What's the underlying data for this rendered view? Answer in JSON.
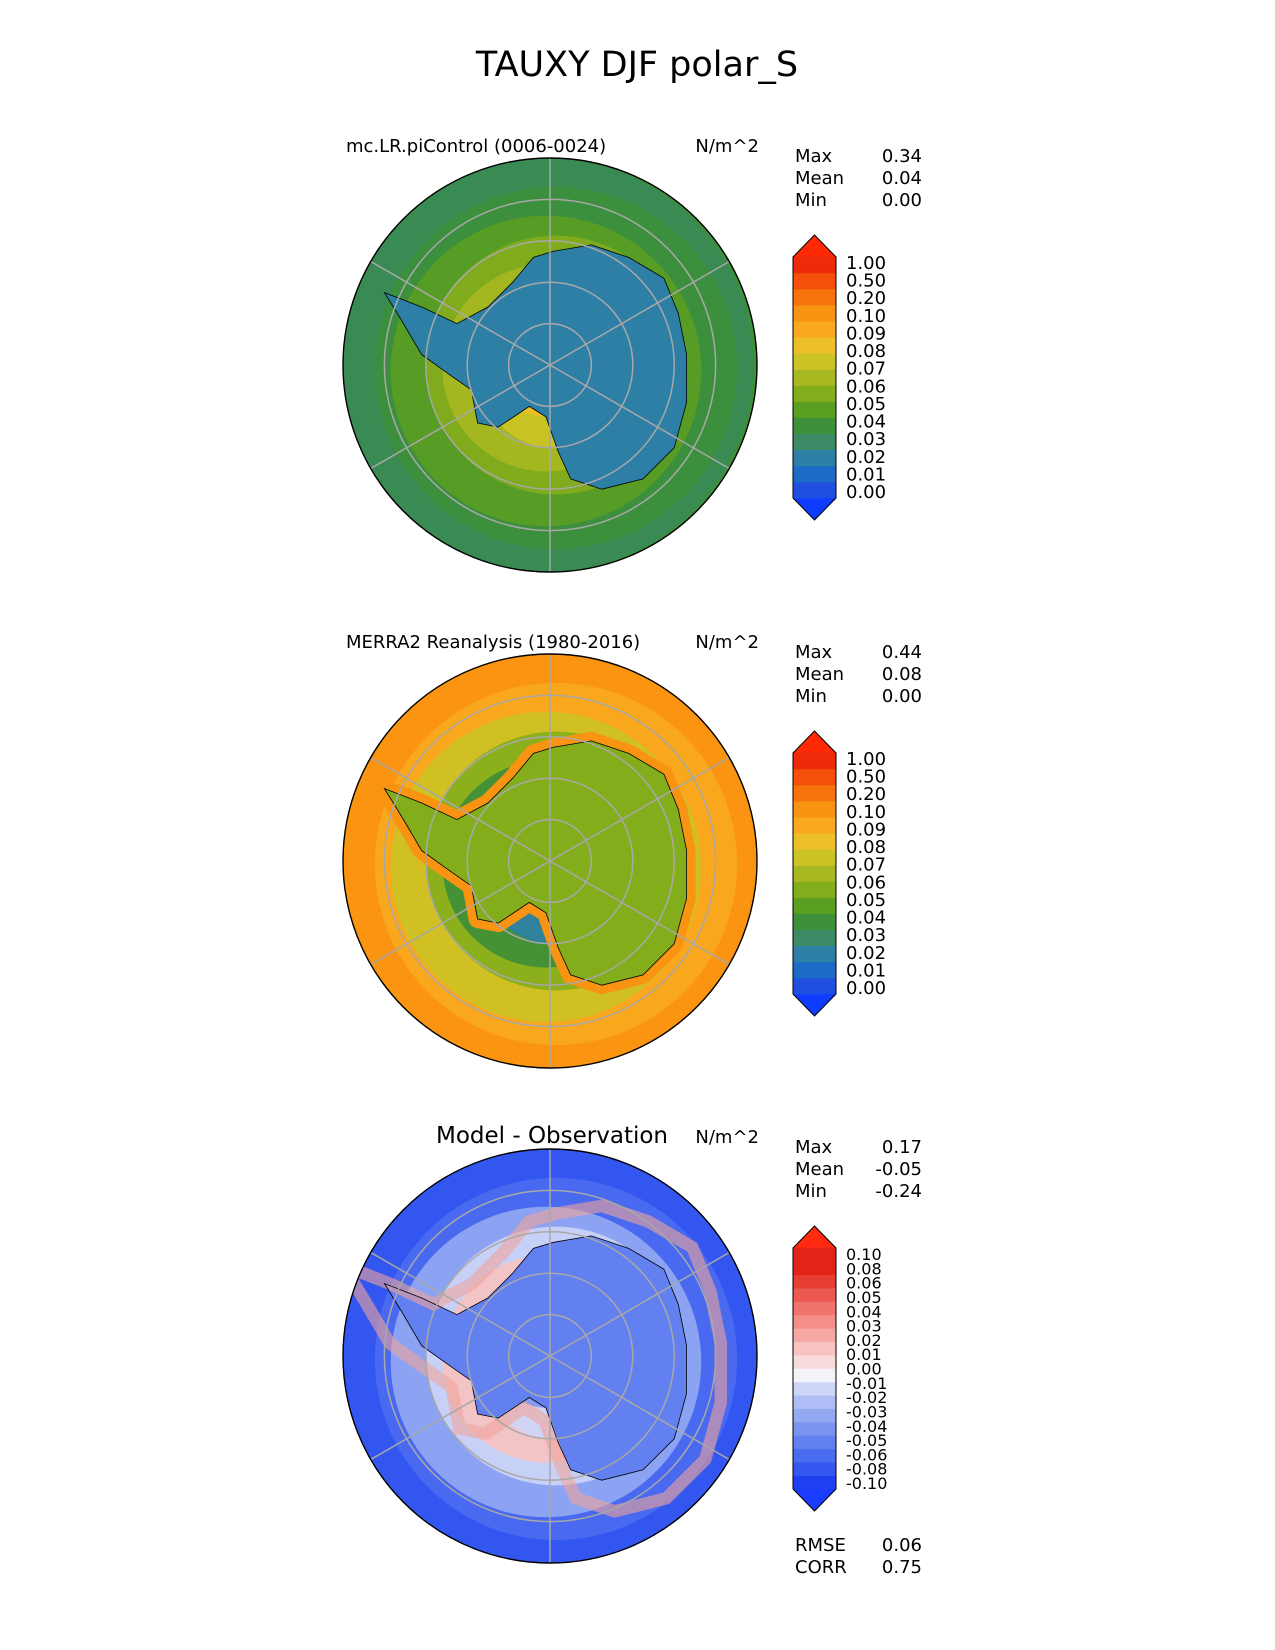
{
  "figure": {
    "title": "TAUXY DJF polar_S"
  },
  "chart_data": [
    {
      "type": "heatmap",
      "projection": "south-polar-stereographic",
      "title": "mc.LR.piControl (0006-0024)",
      "units": "N/m^2",
      "stats": [
        {
          "label": "Max",
          "value": "0.34"
        },
        {
          "label": "Mean",
          "value": "0.04"
        },
        {
          "label": "Min",
          "value": "0.00"
        }
      ],
      "colorbar": {
        "extend": "both",
        "levels": [
          "0.00",
          "0.01",
          "0.02",
          "0.03",
          "0.04",
          "0.05",
          "0.06",
          "0.07",
          "0.08",
          "0.09",
          "0.10",
          "0.20",
          "0.50",
          "1.00"
        ],
        "colors": [
          "#1f4fe0",
          "#1c6cc7",
          "#2d7fa6",
          "#3c8a66",
          "#3d8f3a",
          "#5a9e22",
          "#84ad1c",
          "#a8b821",
          "#ccc325",
          "#edc028",
          "#f8a91f",
          "#f99412",
          "#f8720e",
          "#f4500c",
          "#ee2a09"
        ],
        "under_color": "#0d3cff",
        "over_color": "#ff2a05"
      },
      "field": {
        "ocean_base": "#3d8f3a",
        "ring_colors": [
          "#3a8a56",
          "#3d8f3a",
          "#5a9e22",
          "#84ad1c",
          "#a8b821",
          "#ccc325",
          "#edc028",
          "#f8a91f"
        ],
        "land_color": "#2d7fa6"
      }
    },
    {
      "type": "heatmap",
      "projection": "south-polar-stereographic",
      "title": "MERRA2 Reanalysis (1980-2016)",
      "units": "N/m^2",
      "stats": [
        {
          "label": "Max",
          "value": "0.44"
        },
        {
          "label": "Mean",
          "value": "0.08"
        },
        {
          "label": "Min",
          "value": "0.00"
        }
      ],
      "colorbar": {
        "extend": "both",
        "levels": [
          "0.00",
          "0.01",
          "0.02",
          "0.03",
          "0.04",
          "0.05",
          "0.06",
          "0.07",
          "0.08",
          "0.09",
          "0.10",
          "0.20",
          "0.50",
          "1.00"
        ],
        "colors": [
          "#1f4fe0",
          "#1c6cc7",
          "#2d7fa6",
          "#3c8a66",
          "#3d8f3a",
          "#5a9e22",
          "#84ad1c",
          "#a8b821",
          "#ccc325",
          "#edc028",
          "#f8a91f",
          "#f99412",
          "#f8720e",
          "#f4500c",
          "#ee2a09"
        ],
        "under_color": "#0d3cff",
        "over_color": "#ff2a05"
      },
      "field": {
        "ocean_base": "#f99412",
        "ring_colors": [
          "#f99412",
          "#f8a91f",
          "#ccc325",
          "#84ad1c",
          "#3d8f3a",
          "#2d7fa6",
          "#1c6cc7",
          "#3c8a66"
        ],
        "land_color": "#84ad1c",
        "coast_color": "#f99412"
      }
    },
    {
      "type": "heatmap",
      "projection": "south-polar-stereographic",
      "title": "Model - Observation",
      "units": "N/m^2",
      "stats": [
        {
          "label": "Max",
          "value": "0.17"
        },
        {
          "label": "Mean",
          "value": "-0.05"
        },
        {
          "label": "Min",
          "value": "-0.24"
        }
      ],
      "colorbar": {
        "extend": "both",
        "levels": [
          "-0.10",
          "-0.08",
          "-0.06",
          "-0.05",
          "-0.04",
          "-0.03",
          "-0.02",
          "-0.01",
          "0.00",
          "0.01",
          "0.02",
          "0.03",
          "0.04",
          "0.05",
          "0.06",
          "0.08",
          "0.10"
        ],
        "colors": [
          "#1f40f0",
          "#3357ef",
          "#4a6cef",
          "#6280ef",
          "#7a94f0",
          "#93a9f2",
          "#aebdf5",
          "#cdd6f8",
          "#f4f4f8",
          "#f8dcdc",
          "#f7c2c0",
          "#f5a8a4",
          "#f38e88",
          "#f0746c",
          "#ec5950",
          "#e83d34",
          "#e42318",
          "#e42318"
        ],
        "under_color": "#1a3cff",
        "over_color": "#ff2a10"
      },
      "field": {
        "ocean_base": "#3357ef",
        "ring_colors": [
          "#3357ef",
          "#4a6cef",
          "#93a9f2",
          "#cdd6f8",
          "#f7c2c0",
          "#cdd6f8",
          "#7a94f0",
          "#3357ef"
        ],
        "land_color": "#6280ef"
      },
      "footer_stats": [
        {
          "label": "RMSE",
          "value": "0.06"
        },
        {
          "label": "CORR",
          "value": "0.75"
        }
      ]
    }
  ]
}
